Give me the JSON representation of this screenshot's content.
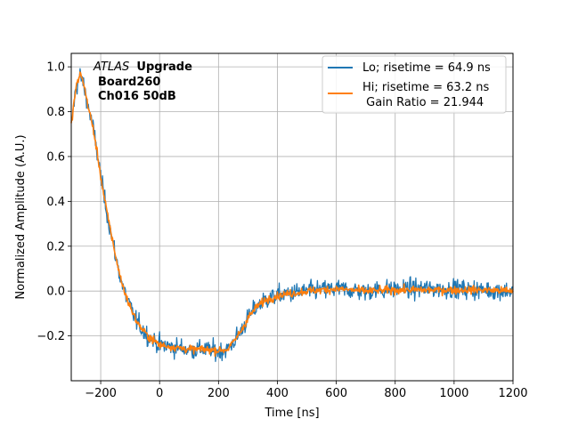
{
  "chart_data": {
    "type": "line",
    "xlabel": "Time [ns]",
    "ylabel": "Normalized Amplitude (A.U.)",
    "xlim": [
      -300,
      1200
    ],
    "ylim": [
      -0.4,
      1.06
    ],
    "xticks": [
      -200,
      0,
      200,
      400,
      600,
      800,
      1000,
      1200
    ],
    "xtick_labels": [
      "−200",
      "0",
      "200",
      "400",
      "600",
      "800",
      "1000",
      "1200"
    ],
    "yticks": [
      -0.2,
      0.0,
      0.2,
      0.4,
      0.6,
      0.8,
      1.0
    ],
    "ytick_labels": [
      "−0.2",
      "0.0",
      "0.2",
      "0.4",
      "0.6",
      "0.8",
      "1.0"
    ],
    "grid": true,
    "legend_position": "top-right",
    "annotation": {
      "italic": "ATLAS",
      "line1_bold": "Upgrade",
      "line2": "Board260",
      "line3": "Ch016 50dB"
    },
    "series": [
      {
        "name": "Lo; risetime = 64.9 ns",
        "color": "#1f77b4",
        "noise": 0.03,
        "x": [
          -300,
          -285,
          -270,
          -260,
          -250,
          -240,
          -225,
          -210,
          -195,
          -180,
          -165,
          -150,
          -135,
          -120,
          -100,
          -80,
          -60,
          -40,
          -20,
          0,
          50,
          100,
          150,
          200,
          230,
          250,
          280,
          300,
          330,
          360,
          400,
          450,
          500,
          550,
          600,
          700,
          800,
          900,
          1000,
          1100,
          1200
        ],
        "values": [
          0.73,
          0.9,
          0.96,
          0.93,
          0.87,
          0.81,
          0.72,
          0.6,
          0.47,
          0.36,
          0.26,
          0.16,
          0.07,
          0.0,
          -0.07,
          -0.13,
          -0.17,
          -0.2,
          -0.22,
          -0.24,
          -0.25,
          -0.26,
          -0.26,
          -0.27,
          -0.26,
          -0.23,
          -0.17,
          -0.12,
          -0.07,
          -0.04,
          -0.02,
          -0.01,
          0.0,
          0.005,
          0.01,
          0.0,
          0.01,
          0.01,
          0.01,
          0.005,
          0.0
        ]
      },
      {
        "name": "Hi; risetime = 63.2 ns\n Gain Ratio = 21.944",
        "color": "#ff7f0e",
        "noise": 0.012,
        "x": [
          -300,
          -285,
          -270,
          -260,
          -250,
          -240,
          -225,
          -210,
          -195,
          -180,
          -165,
          -150,
          -135,
          -120,
          -100,
          -80,
          -60,
          -40,
          -20,
          0,
          50,
          100,
          150,
          200,
          230,
          250,
          280,
          300,
          330,
          360,
          400,
          450,
          500,
          550,
          600,
          700,
          800,
          900,
          1000,
          1100,
          1200
        ],
        "values": [
          0.74,
          0.9,
          0.97,
          0.94,
          0.87,
          0.81,
          0.72,
          0.6,
          0.47,
          0.36,
          0.26,
          0.16,
          0.07,
          0.0,
          -0.07,
          -0.13,
          -0.17,
          -0.2,
          -0.22,
          -0.24,
          -0.25,
          -0.26,
          -0.26,
          -0.265,
          -0.26,
          -0.23,
          -0.17,
          -0.12,
          -0.07,
          -0.04,
          -0.02,
          -0.01,
          0.0,
          0.005,
          0.01,
          0.0,
          0.005,
          0.005,
          0.005,
          0.005,
          0.0
        ]
      }
    ]
  }
}
